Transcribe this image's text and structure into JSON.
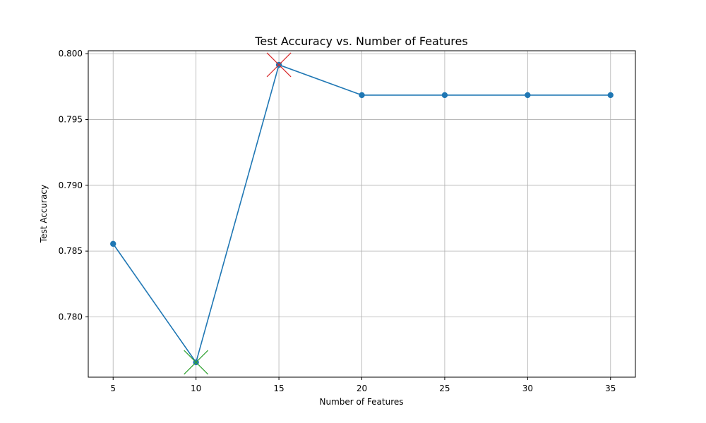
{
  "chart_data": {
    "type": "line",
    "title": "Test Accuracy vs. Number of Features",
    "xlabel": "Number of Features",
    "ylabel": "Test Accuracy",
    "x": [
      5,
      10,
      15,
      20,
      25,
      30,
      35
    ],
    "series": [
      {
        "values": [
          0.78555,
          0.77655,
          0.79915,
          0.79685,
          0.79685,
          0.79685,
          0.79685
        ],
        "color": "#1f77b4",
        "marker": "circle"
      }
    ],
    "highlights": [
      {
        "x": 15,
        "y": 0.79915,
        "marker": "x",
        "color": "#d62728",
        "meaning": "maximum"
      },
      {
        "x": 10,
        "y": 0.77655,
        "marker": "x",
        "color": "#2ca02c",
        "meaning": "minimum"
      }
    ],
    "x_ticks": [
      5,
      10,
      15,
      20,
      25,
      30,
      35
    ],
    "y_ticks": [
      0.78,
      0.785,
      0.79,
      0.795,
      0.8
    ],
    "x_tick_labels": [
      "5",
      "10",
      "15",
      "20",
      "25",
      "30",
      "35"
    ],
    "y_tick_labels": [
      "0.780",
      "0.785",
      "0.790",
      "0.795",
      "0.800"
    ],
    "xlim": [
      3.5,
      36.5
    ],
    "ylim": [
      0.77542,
      0.80022
    ],
    "grid": true
  }
}
